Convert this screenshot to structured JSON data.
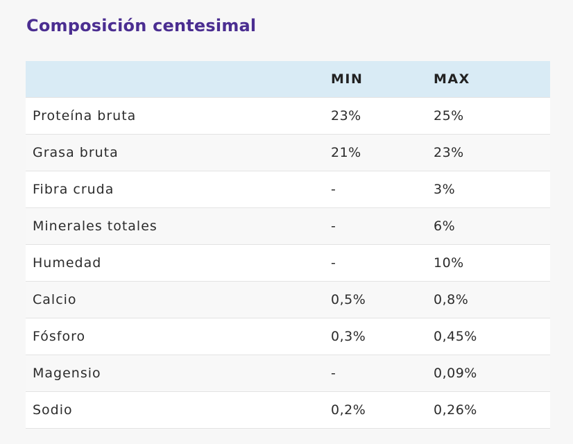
{
  "title": "Composición centesimal",
  "table": {
    "headers": [
      "",
      "MIN",
      "MAX"
    ],
    "rows": [
      {
        "name": "Proteína bruta",
        "min": "23%",
        "max": "25%"
      },
      {
        "name": "Grasa bruta",
        "min": "21%",
        "max": "23%"
      },
      {
        "name": "Fibra cruda",
        "min": "-",
        "max": "3%"
      },
      {
        "name": "Minerales totales",
        "min": "-",
        "max": "6%"
      },
      {
        "name": "Humedad",
        "min": "-",
        "max": "10%"
      },
      {
        "name": "Calcio",
        "min": "0,5%",
        "max": "0,8%"
      },
      {
        "name": "Fósforo",
        "min": "0,3%",
        "max": "0,45%"
      },
      {
        "name": "Magensio",
        "min": "-",
        "max": "0,09%"
      },
      {
        "name": "Sodio",
        "min": "0,2%",
        "max": "0,26%"
      }
    ]
  },
  "colors": {
    "title": "#4b2e91",
    "header_bg": "#d9ebf5",
    "page_bg": "#f7f7f7",
    "row_border": "#e3e3e3"
  }
}
